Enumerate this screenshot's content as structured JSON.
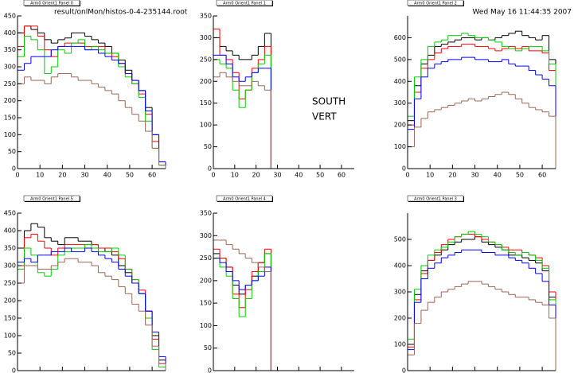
{
  "header": {
    "file": "result/onlMon/histos-0-4-235144.root",
    "date": "Wed May 16 11:44:35 2007"
  },
  "label": [
    "SOUTH",
    "VERT"
  ],
  "chart_data": [
    {
      "type": "histogram",
      "title": "Arm0 Orient1 Panel 0",
      "bins": [
        0,
        3,
        6,
        9,
        12,
        15,
        18,
        21,
        24,
        27,
        30,
        33,
        36,
        39,
        42,
        45,
        48,
        51,
        54,
        57,
        60,
        63,
        66
      ],
      "xlim": [
        0,
        66
      ],
      "ylim": [
        0,
        450
      ],
      "xticks": [
        0,
        10,
        20,
        30,
        40,
        50,
        60
      ],
      "yticks": [
        0,
        50,
        100,
        150,
        200,
        250,
        300,
        350,
        400,
        450
      ],
      "series": [
        {
          "color": "#000000",
          "values": [
            400,
            420,
            410,
            400,
            380,
            370,
            380,
            385,
            400,
            400,
            390,
            380,
            370,
            360,
            340,
            320,
            290,
            260,
            230,
            180,
            100,
            20
          ]
        },
        {
          "color": "#ff0000",
          "values": [
            360,
            420,
            420,
            390,
            350,
            330,
            360,
            370,
            370,
            370,
            360,
            360,
            360,
            340,
            330,
            310,
            280,
            250,
            220,
            160,
            80,
            20
          ]
        },
        {
          "color": "#00cc00",
          "values": [
            330,
            390,
            380,
            350,
            280,
            300,
            350,
            340,
            370,
            380,
            350,
            360,
            350,
            340,
            340,
            300,
            270,
            250,
            210,
            140,
            60,
            10
          ]
        },
        {
          "color": "#0000ff",
          "values": [
            290,
            310,
            330,
            330,
            330,
            350,
            360,
            360,
            360,
            360,
            350,
            350,
            340,
            330,
            320,
            310,
            280,
            260,
            230,
            170,
            100,
            20
          ]
        },
        {
          "color": "#996655",
          "values": [
            250,
            270,
            260,
            260,
            250,
            270,
            280,
            280,
            270,
            260,
            260,
            250,
            240,
            230,
            220,
            200,
            180,
            160,
            140,
            110,
            60,
            10
          ]
        }
      ]
    },
    {
      "type": "histogram",
      "title": "Arm0 Orient1 Panel 1",
      "bins": [
        0,
        3,
        6,
        9,
        12,
        15,
        18,
        21,
        24,
        27
      ],
      "xlim": [
        0,
        66
      ],
      "ylim": [
        0,
        350
      ],
      "xticks": [
        0,
        10,
        20,
        30,
        40,
        50,
        60
      ],
      "yticks": [
        0,
        50,
        100,
        150,
        200,
        250,
        300,
        350
      ],
      "series": [
        {
          "color": "#000000",
          "values": [
            300,
            280,
            270,
            260,
            250,
            250,
            260,
            280,
            310
          ]
        },
        {
          "color": "#ff0000",
          "values": [
            320,
            260,
            250,
            220,
            160,
            180,
            230,
            250,
            280
          ]
        },
        {
          "color": "#00cc00",
          "values": [
            250,
            240,
            230,
            180,
            140,
            180,
            220,
            240,
            260
          ]
        },
        {
          "color": "#0000ff",
          "values": [
            260,
            260,
            240,
            210,
            200,
            210,
            220,
            230,
            230
          ]
        },
        {
          "color": "#996655",
          "values": [
            210,
            220,
            210,
            200,
            190,
            190,
            200,
            190,
            180
          ]
        }
      ]
    },
    {
      "type": "histogram",
      "title": "Arm0 Orient1 Panel 2",
      "bins": [
        0,
        3,
        6,
        9,
        12,
        15,
        18,
        21,
        24,
        27,
        30,
        33,
        36,
        39,
        42,
        45,
        48,
        51,
        54,
        57,
        60,
        63,
        66
      ],
      "xlim": [
        0,
        66
      ],
      "ylim": [
        0,
        700
      ],
      "xticks": [
        0,
        10,
        20,
        30,
        40,
        50,
        60
      ],
      "yticks": [
        0,
        100,
        200,
        300,
        400,
        500,
        600
      ],
      "series": [
        {
          "color": "#000000",
          "values": [
            220,
            380,
            480,
            520,
            560,
            570,
            580,
            590,
            600,
            600,
            590,
            600,
            590,
            600,
            610,
            620,
            630,
            610,
            600,
            590,
            610,
            500
          ]
        },
        {
          "color": "#ff0000",
          "values": [
            200,
            350,
            460,
            500,
            530,
            550,
            560,
            560,
            570,
            570,
            560,
            560,
            550,
            540,
            550,
            560,
            550,
            560,
            540,
            540,
            530,
            450
          ]
        },
        {
          "color": "#00cc00",
          "values": [
            240,
            420,
            500,
            560,
            580,
            590,
            610,
            610,
            620,
            610,
            600,
            600,
            590,
            580,
            560,
            550,
            540,
            550,
            560,
            560,
            540,
            480
          ]
        },
        {
          "color": "#0000ff",
          "values": [
            180,
            320,
            420,
            460,
            480,
            490,
            500,
            500,
            510,
            510,
            500,
            500,
            490,
            490,
            500,
            480,
            470,
            470,
            450,
            430,
            410,
            380
          ]
        },
        {
          "color": "#996655",
          "values": [
            100,
            190,
            230,
            260,
            270,
            280,
            290,
            300,
            310,
            320,
            310,
            320,
            330,
            340,
            350,
            340,
            320,
            300,
            280,
            270,
            260,
            240
          ]
        }
      ]
    },
    {
      "type": "histogram",
      "title": "Arm0 Orient1 Panel 5",
      "bins": [
        0,
        3,
        6,
        9,
        12,
        15,
        18,
        21,
        24,
        27,
        30,
        33,
        36,
        39,
        42,
        45,
        48,
        51,
        54,
        57,
        60,
        63,
        66
      ],
      "xlim": [
        0,
        66
      ],
      "ylim": [
        0,
        450
      ],
      "xticks": [
        0,
        10,
        20,
        30,
        40,
        50,
        60
      ],
      "yticks": [
        0,
        50,
        100,
        150,
        200,
        250,
        300,
        350,
        400,
        450
      ],
      "series": [
        {
          "color": "#000000",
          "values": [
            350,
            400,
            420,
            410,
            380,
            370,
            360,
            380,
            380,
            370,
            370,
            360,
            350,
            340,
            330,
            300,
            280,
            250,
            220,
            170,
            100,
            30
          ]
        },
        {
          "color": "#ff0000",
          "values": [
            300,
            380,
            390,
            370,
            350,
            330,
            350,
            360,
            360,
            360,
            360,
            360,
            350,
            350,
            340,
            320,
            290,
            260,
            230,
            170,
            90,
            20
          ]
        },
        {
          "color": "#00cc00",
          "values": [
            290,
            350,
            330,
            280,
            270,
            290,
            330,
            340,
            350,
            350,
            360,
            350,
            340,
            340,
            350,
            330,
            290,
            260,
            220,
            150,
            60,
            10
          ]
        },
        {
          "color": "#0000ff",
          "values": [
            310,
            320,
            310,
            330,
            330,
            340,
            340,
            350,
            340,
            340,
            350,
            340,
            330,
            320,
            310,
            290,
            270,
            250,
            220,
            170,
            110,
            40
          ]
        },
        {
          "color": "#996655",
          "values": [
            250,
            300,
            300,
            290,
            290,
            300,
            310,
            320,
            320,
            310,
            310,
            300,
            280,
            270,
            260,
            240,
            220,
            190,
            170,
            130,
            70,
            20
          ]
        }
      ]
    },
    {
      "type": "histogram",
      "title": "Arm0 Orient1 Panel 4",
      "bins": [
        0,
        3,
        6,
        9,
        12,
        15,
        18,
        21,
        24,
        27
      ],
      "xlim": [
        0,
        66
      ],
      "ylim": [
        0,
        350
      ],
      "xticks": [
        0,
        10,
        20,
        30,
        40,
        50,
        60
      ],
      "yticks": [
        0,
        50,
        100,
        150,
        200,
        250,
        300,
        350
      ],
      "series": [
        {
          "color": "#000000",
          "values": [
            260,
            250,
            230,
            190,
            170,
            190,
            210,
            240,
            260
          ]
        },
        {
          "color": "#ff0000",
          "values": [
            270,
            250,
            230,
            170,
            140,
            180,
            220,
            240,
            270
          ]
        },
        {
          "color": "#00cc00",
          "values": [
            250,
            230,
            210,
            160,
            120,
            160,
            200,
            220,
            260
          ]
        },
        {
          "color": "#0000ff",
          "values": [
            250,
            240,
            220,
            200,
            180,
            190,
            200,
            210,
            230
          ]
        },
        {
          "color": "#996655",
          "values": [
            290,
            290,
            280,
            270,
            260,
            250,
            240,
            230,
            220
          ]
        }
      ]
    },
    {
      "type": "histogram",
      "title": "Arm0 Orient1 Panel 3",
      "bins": [
        0,
        3,
        6,
        9,
        12,
        15,
        18,
        21,
        24,
        27,
        30,
        33,
        36,
        39,
        42,
        45,
        48,
        51,
        54,
        57,
        60,
        63,
        66
      ],
      "xlim": [
        0,
        66
      ],
      "ylim": [
        0,
        600
      ],
      "xticks": [
        0,
        10,
        20,
        30,
        40,
        50,
        60
      ],
      "yticks": [
        0,
        100,
        200,
        300,
        400,
        500
      ],
      "series": [
        {
          "color": "#000000",
          "values": [
            100,
            290,
            380,
            420,
            440,
            460,
            480,
            490,
            500,
            500,
            510,
            490,
            480,
            470,
            460,
            440,
            440,
            430,
            420,
            410,
            380,
            280
          ]
        },
        {
          "color": "#ff0000",
          "values": [
            90,
            270,
            370,
            420,
            450,
            480,
            500,
            510,
            520,
            520,
            510,
            500,
            490,
            480,
            470,
            460,
            460,
            450,
            440,
            430,
            400,
            300
          ]
        },
        {
          "color": "#00cc00",
          "values": [
            120,
            310,
            400,
            440,
            460,
            470,
            490,
            510,
            520,
            530,
            520,
            510,
            490,
            480,
            460,
            450,
            440,
            450,
            440,
            420,
            390,
            270
          ]
        },
        {
          "color": "#0000ff",
          "values": [
            80,
            260,
            350,
            390,
            410,
            430,
            440,
            450,
            460,
            460,
            460,
            450,
            450,
            440,
            440,
            430,
            420,
            410,
            390,
            370,
            340,
            250
          ]
        },
        {
          "color": "#996655",
          "values": [
            60,
            180,
            230,
            260,
            280,
            300,
            310,
            320,
            330,
            340,
            340,
            330,
            320,
            310,
            300,
            290,
            280,
            280,
            270,
            260,
            250,
            200
          ]
        }
      ]
    }
  ]
}
